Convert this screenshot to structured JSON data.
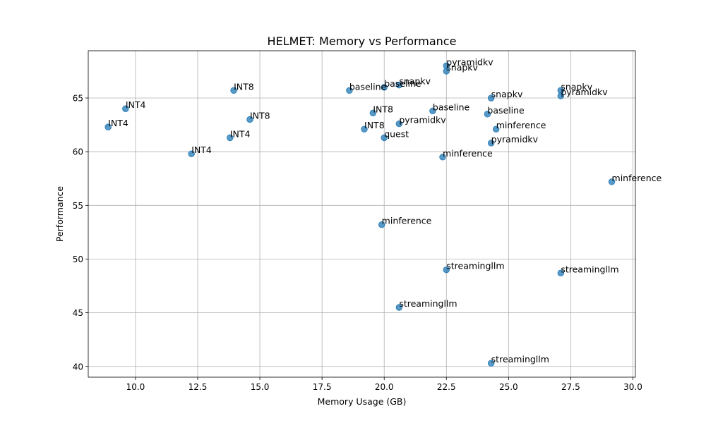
{
  "chart_data": {
    "type": "scatter",
    "title": "HELMET: Memory vs Performance",
    "xlabel": "Memory Usage (GB)",
    "ylabel": "Performance",
    "xlim": [
      8.1,
      30.1
    ],
    "ylim": [
      39.0,
      69.4
    ],
    "xticks": [
      10.0,
      12.5,
      15.0,
      17.5,
      20.0,
      22.5,
      25.0,
      27.5,
      30.0
    ],
    "xtick_labels": [
      "10.0",
      "12.5",
      "15.0",
      "17.5",
      "20.0",
      "22.5",
      "25.0",
      "27.5",
      "30.0"
    ],
    "yticks": [
      40,
      45,
      50,
      55,
      60,
      65
    ],
    "ytick_labels": [
      "40",
      "45",
      "50",
      "55",
      "60",
      "65"
    ],
    "grid": true,
    "point_color": "#1f77b4",
    "points": [
      {
        "x": 8.9,
        "y": 62.3,
        "label": "INT4"
      },
      {
        "x": 9.6,
        "y": 64.0,
        "label": "INT4"
      },
      {
        "x": 12.25,
        "y": 59.8,
        "label": "INT4"
      },
      {
        "x": 13.8,
        "y": 61.3,
        "label": "INT4"
      },
      {
        "x": 13.95,
        "y": 65.7,
        "label": "INT8"
      },
      {
        "x": 14.6,
        "y": 63.0,
        "label": "INT8"
      },
      {
        "x": 18.6,
        "y": 65.7,
        "label": "baseline"
      },
      {
        "x": 19.2,
        "y": 62.1,
        "label": "INT8"
      },
      {
        "x": 19.55,
        "y": 63.6,
        "label": "INT8"
      },
      {
        "x": 19.9,
        "y": 53.2,
        "label": "minference"
      },
      {
        "x": 20.0,
        "y": 61.3,
        "label": "quest"
      },
      {
        "x": 20.0,
        "y": 66.0,
        "label": "baseline"
      },
      {
        "x": 20.6,
        "y": 66.2,
        "label": "snapkv"
      },
      {
        "x": 20.6,
        "y": 62.6,
        "label": "pyramidkv"
      },
      {
        "x": 20.6,
        "y": 45.5,
        "label": "streamingllm"
      },
      {
        "x": 21.95,
        "y": 63.8,
        "label": "baseline"
      },
      {
        "x": 22.35,
        "y": 59.5,
        "label": "minference"
      },
      {
        "x": 22.5,
        "y": 68.0,
        "label": "pyramidkv"
      },
      {
        "x": 22.5,
        "y": 67.5,
        "label": "snapkv"
      },
      {
        "x": 22.5,
        "y": 49.0,
        "label": "streamingllm"
      },
      {
        "x": 24.15,
        "y": 63.5,
        "label": "baseline"
      },
      {
        "x": 24.3,
        "y": 65.0,
        "label": "snapkv"
      },
      {
        "x": 24.3,
        "y": 60.8,
        "label": "pyramidkv"
      },
      {
        "x": 24.3,
        "y": 40.3,
        "label": "streamingllm"
      },
      {
        "x": 24.5,
        "y": 62.1,
        "label": "minference"
      },
      {
        "x": 27.1,
        "y": 65.7,
        "label": "snapkv"
      },
      {
        "x": 27.1,
        "y": 65.2,
        "label": "pyramidkv"
      },
      {
        "x": 27.1,
        "y": 48.7,
        "label": "streamingllm"
      },
      {
        "x": 29.15,
        "y": 57.2,
        "label": "minference"
      }
    ]
  }
}
